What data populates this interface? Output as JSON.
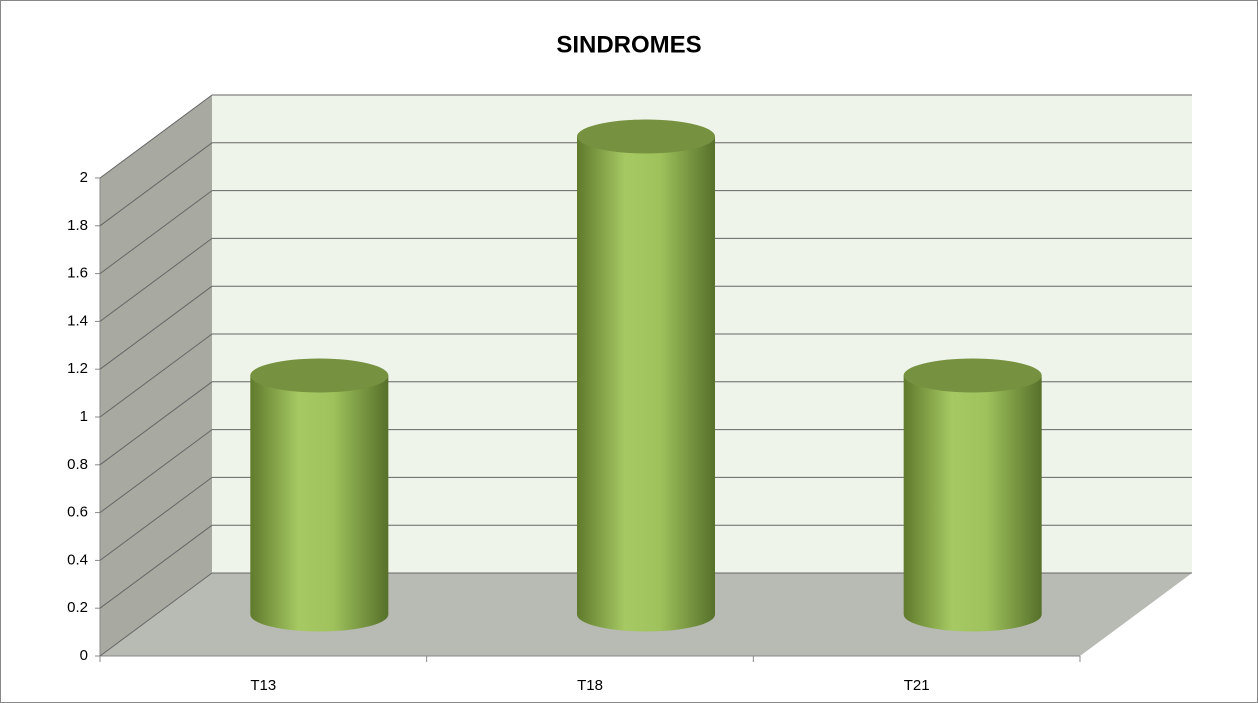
{
  "chart_data": {
    "type": "bar",
    "title": "SINDROMES",
    "categories": [
      "T13",
      "T18",
      "T21"
    ],
    "values": [
      1,
      2,
      1
    ],
    "color": "#9bbb59",
    "ylim": [
      0,
      2
    ],
    "yticks": [
      0,
      0.2,
      0.4,
      0.6,
      0.8,
      1,
      1.2,
      1.4,
      1.6,
      1.8,
      2
    ],
    "grid": true
  }
}
